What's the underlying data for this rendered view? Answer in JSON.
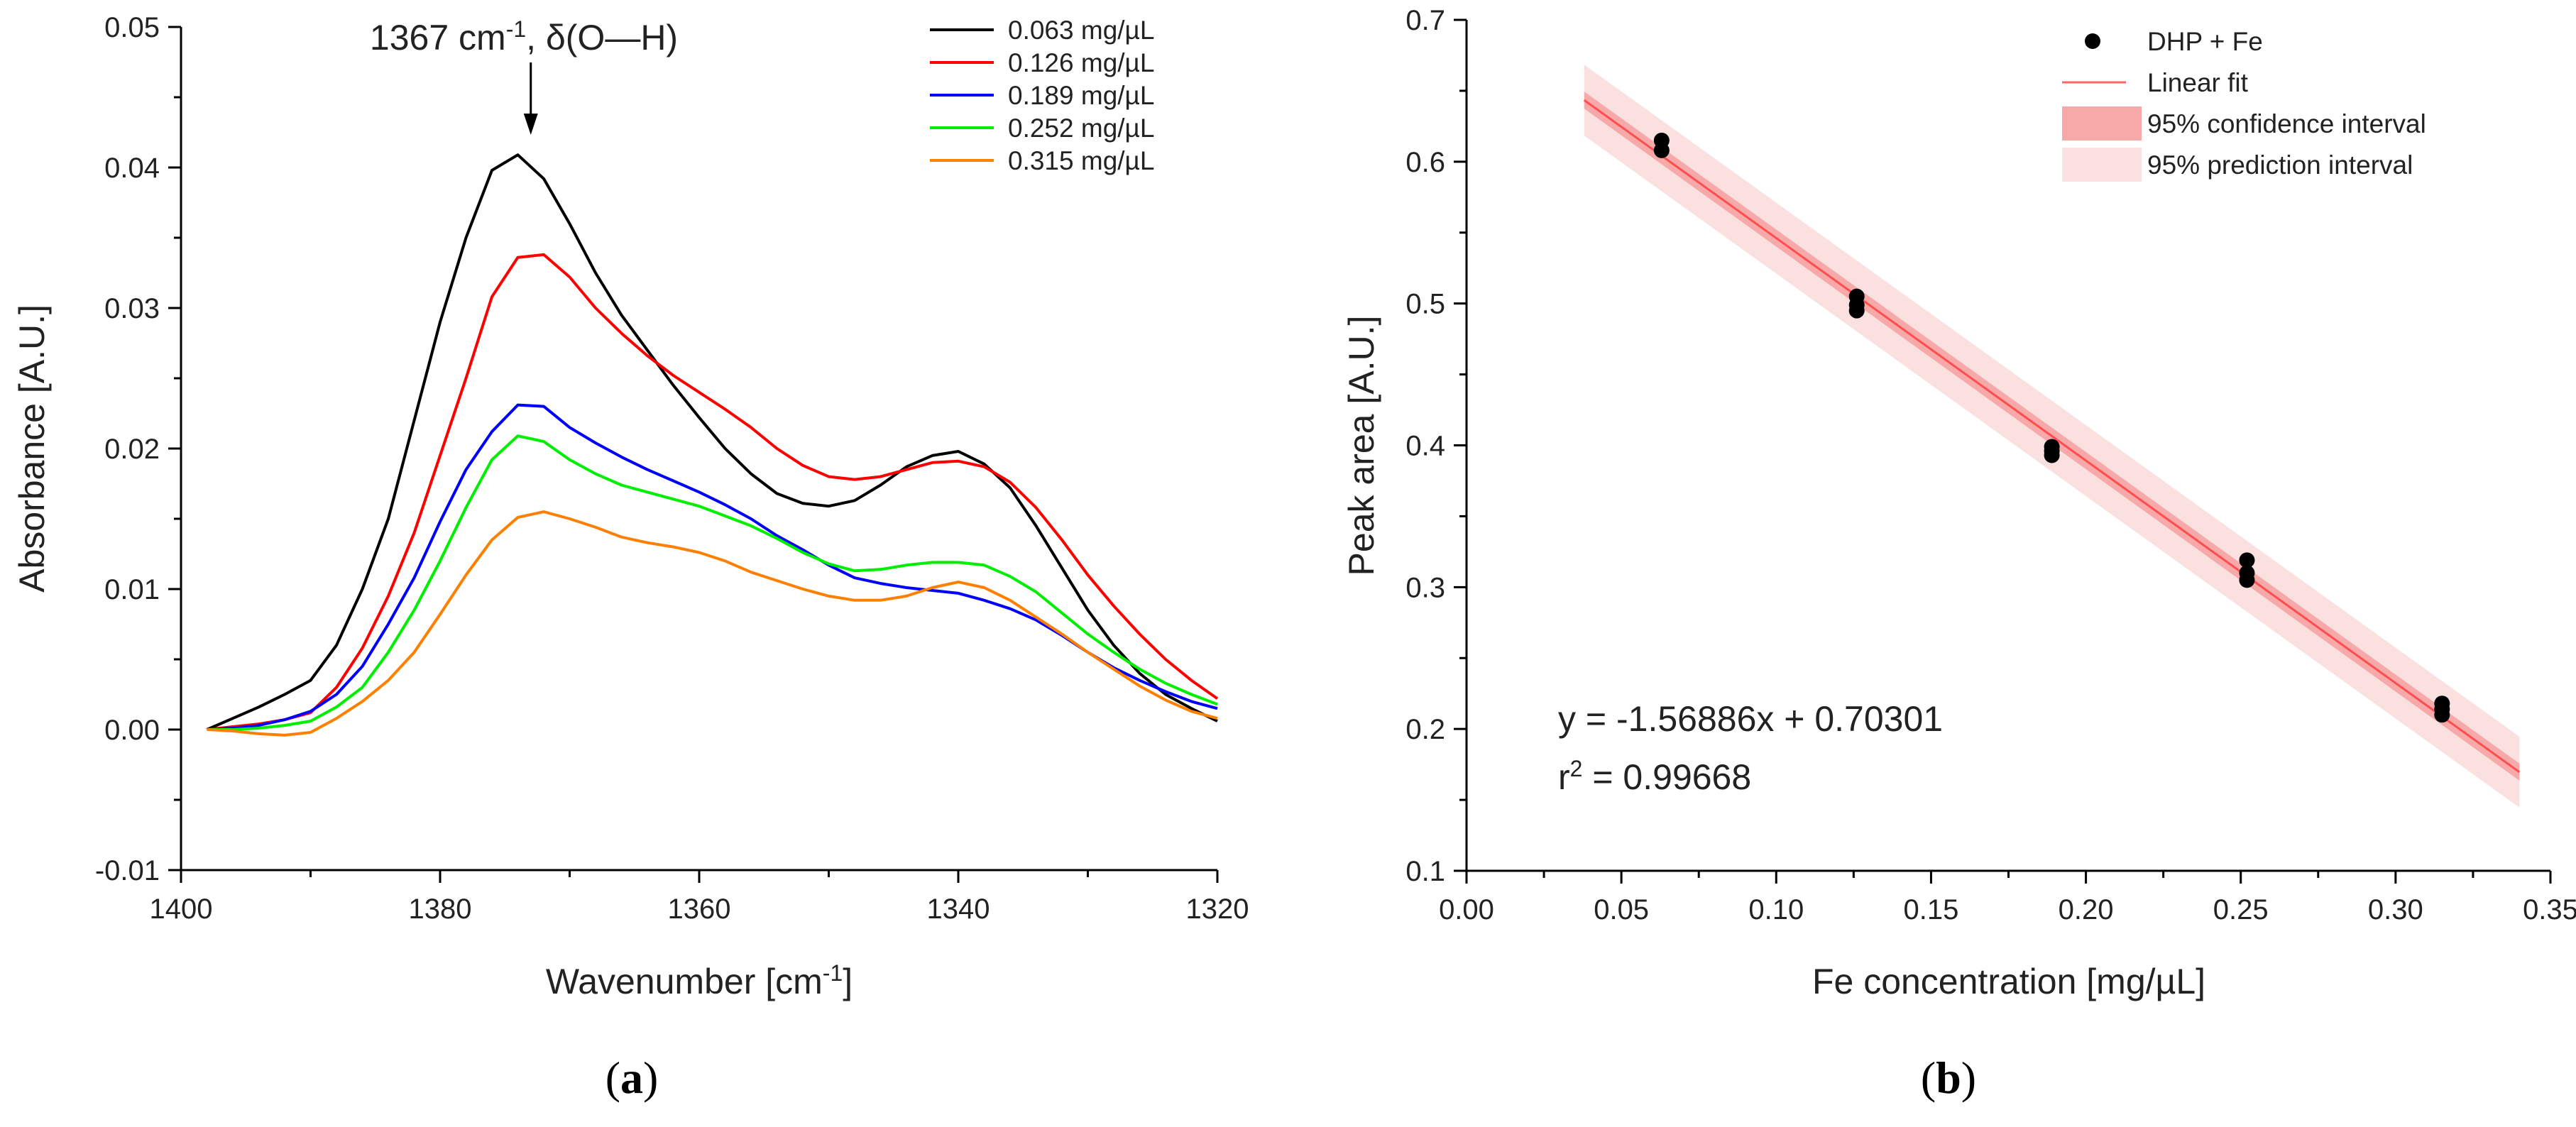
{
  "chart_data": [
    {
      "panel": "(a)",
      "panel_letter": "a",
      "type": "line",
      "xlabel": "Wavenumber [cm",
      "xlabel_sup": "-1",
      "xlabel_end": "]",
      "ylabel": "Absorbance [A.U.]",
      "xlim": [
        1400,
        1320
      ],
      "ylim": [
        -0.01,
        0.05
      ],
      "x_ticks": [
        "1400",
        "1380",
        "1360",
        "1340",
        "1320"
      ],
      "y_ticks": [
        "-0.01",
        "0.00",
        "0.01",
        "0.02",
        "0.03",
        "0.04",
        "0.05"
      ],
      "annotation": {
        "text_before": "1367 cm",
        "text_sup": "-1",
        "text_after": ", δ(O—H)",
        "x": 1373,
        "y": 0.0435
      },
      "x": [
        1398,
        1396,
        1394,
        1392,
        1390,
        1388,
        1386,
        1384,
        1382,
        1380,
        1378,
        1376,
        1374,
        1372,
        1370,
        1368,
        1366,
        1364,
        1362,
        1360,
        1358,
        1356,
        1354,
        1352,
        1350,
        1348,
        1346,
        1344,
        1342,
        1340,
        1338,
        1336,
        1334,
        1332,
        1330,
        1328,
        1326,
        1324,
        1322,
        1320
      ],
      "series": [
        {
          "name": "0.063 mg/µL",
          "color": "#000000",
          "values": [
            0.0,
            0.0008,
            0.0016,
            0.0025,
            0.0035,
            0.006,
            0.01,
            0.015,
            0.022,
            0.029,
            0.035,
            0.0398,
            0.0409,
            0.0392,
            0.036,
            0.0325,
            0.0295,
            0.027,
            0.0245,
            0.0222,
            0.02,
            0.0182,
            0.0168,
            0.0161,
            0.0159,
            0.0163,
            0.0174,
            0.0187,
            0.0195,
            0.0198,
            0.0189,
            0.0172,
            0.0145,
            0.0115,
            0.0085,
            0.006,
            0.004,
            0.0025,
            0.0015,
            0.0006
          ]
        },
        {
          "name": "0.126 mg/µL",
          "color": "#ff0000",
          "values": [
            0.0,
            0.0002,
            0.0004,
            0.0007,
            0.0012,
            0.003,
            0.0058,
            0.0095,
            0.014,
            0.0195,
            0.025,
            0.0308,
            0.0336,
            0.0338,
            0.0322,
            0.03,
            0.0282,
            0.0266,
            0.0252,
            0.024,
            0.0228,
            0.0215,
            0.02,
            0.0188,
            0.018,
            0.0178,
            0.018,
            0.0185,
            0.019,
            0.0191,
            0.0187,
            0.0176,
            0.0158,
            0.0135,
            0.011,
            0.0088,
            0.0068,
            0.005,
            0.0035,
            0.0022
          ]
        },
        {
          "name": "0.189 mg/µL",
          "color": "#0000ff",
          "values": [
            0.0,
            0.0001,
            0.0003,
            0.0007,
            0.0013,
            0.0025,
            0.0045,
            0.0075,
            0.0108,
            0.0148,
            0.0185,
            0.0212,
            0.0231,
            0.023,
            0.0215,
            0.0204,
            0.0194,
            0.0185,
            0.0177,
            0.0169,
            0.016,
            0.015,
            0.0138,
            0.0128,
            0.0117,
            0.0108,
            0.0104,
            0.0101,
            0.0099,
            0.0097,
            0.0092,
            0.0086,
            0.0078,
            0.0067,
            0.0055,
            0.0044,
            0.0035,
            0.0027,
            0.002,
            0.0015
          ]
        },
        {
          "name": "0.252 mg/µL",
          "color": "#00ee00",
          "values": [
            0.0,
            0.0,
            0.0001,
            0.0003,
            0.0006,
            0.0016,
            0.003,
            0.0055,
            0.0085,
            0.012,
            0.0158,
            0.0192,
            0.0209,
            0.0205,
            0.0192,
            0.0182,
            0.0174,
            0.0169,
            0.0164,
            0.0159,
            0.0152,
            0.0145,
            0.0136,
            0.0126,
            0.0118,
            0.0113,
            0.0114,
            0.0117,
            0.0119,
            0.0119,
            0.0117,
            0.0109,
            0.0098,
            0.0083,
            0.0068,
            0.0055,
            0.0043,
            0.0033,
            0.0025,
            0.0018
          ]
        },
        {
          "name": "0.315 mg/µL",
          "color": "#ff8000",
          "values": [
            0.0,
            -0.0001,
            -0.0003,
            -0.0004,
            -0.0002,
            0.0008,
            0.002,
            0.0035,
            0.0055,
            0.0082,
            0.011,
            0.0135,
            0.0151,
            0.0155,
            0.015,
            0.0144,
            0.0137,
            0.0133,
            0.013,
            0.0126,
            0.012,
            0.0112,
            0.0106,
            0.01,
            0.0095,
            0.0092,
            0.0092,
            0.0095,
            0.0101,
            0.0105,
            0.0101,
            0.0092,
            0.008,
            0.0068,
            0.0055,
            0.0043,
            0.0031,
            0.0021,
            0.0013,
            0.0008
          ]
        }
      ]
    },
    {
      "panel": "(b)",
      "panel_letter": "b",
      "type": "scatter",
      "xlabel": "Fe concentration [mg/µL]",
      "ylabel": "Peak area [A.U.]",
      "xlim": [
        0.0,
        0.35
      ],
      "ylim": [
        0.1,
        0.7
      ],
      "x_ticks": [
        "0.00",
        "0.05",
        "0.10",
        "0.15",
        "0.20",
        "0.25",
        "0.30",
        "0.35"
      ],
      "y_ticks": [
        "0.1",
        "0.2",
        "0.3",
        "0.4",
        "0.5",
        "0.6",
        "0.7"
      ],
      "points": [
        {
          "x": 0.063,
          "y": 0.615
        },
        {
          "x": 0.063,
          "y": 0.608
        },
        {
          "x": 0.126,
          "y": 0.505
        },
        {
          "x": 0.126,
          "y": 0.499
        },
        {
          "x": 0.126,
          "y": 0.495
        },
        {
          "x": 0.189,
          "y": 0.399
        },
        {
          "x": 0.189,
          "y": 0.396
        },
        {
          "x": 0.189,
          "y": 0.393
        },
        {
          "x": 0.252,
          "y": 0.319
        },
        {
          "x": 0.252,
          "y": 0.31
        },
        {
          "x": 0.252,
          "y": 0.305
        },
        {
          "x": 0.315,
          "y": 0.218
        },
        {
          "x": 0.315,
          "y": 0.214
        },
        {
          "x": 0.315,
          "y": 0.21
        }
      ],
      "fit": {
        "slope": -1.56886,
        "intercept": 0.70301,
        "x_range": [
          0.038,
          0.34
        ],
        "ci_half_width": 0.006,
        "pi_half_width": 0.025
      },
      "equation": "y = -1.56886x + 0.70301",
      "r2_prefix": "r",
      "r2_sup": "2",
      "r2_value": " = 0.99668",
      "legend": [
        {
          "label": "DHP + Fe",
          "kind": "marker",
          "color": "#000000"
        },
        {
          "label": "Linear fit",
          "kind": "line",
          "color": "#ff6666"
        },
        {
          "label": "95% confidence interval",
          "kind": "box",
          "color": "#f7a8a8"
        },
        {
          "label": "95% prediction interval",
          "kind": "box",
          "color": "#fbe0e0"
        }
      ]
    }
  ]
}
